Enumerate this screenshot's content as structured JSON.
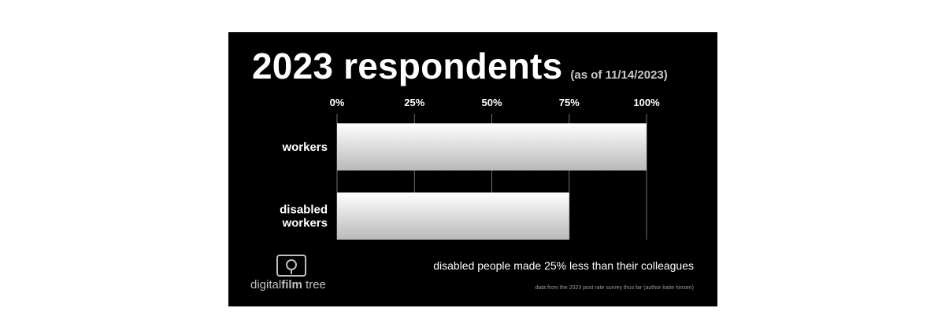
{
  "header": {
    "title": "2023 respondents",
    "subtitle": "(as of 11/14/2023)"
  },
  "chart_data": {
    "type": "bar",
    "orientation": "horizontal",
    "categories": [
      "workers",
      "disabled workers"
    ],
    "category_lines": [
      [
        "workers"
      ],
      [
        "disabled",
        "workers"
      ]
    ],
    "values": [
      100,
      75
    ],
    "xlim": [
      0,
      100
    ],
    "ticks": [
      "0%",
      "25%",
      "50%",
      "75%",
      "100%"
    ],
    "tick_values": [
      0,
      25,
      50,
      75,
      100
    ],
    "grid": true,
    "bar_color_top": "#ffffff",
    "bar_color_bottom": "#b9b9b9"
  },
  "annotation": "disabled people made 25% less than their colleagues",
  "source": "data from the 2023 post rate survey thus far (author katie hinsen)",
  "logo": {
    "icon": "tree-icon",
    "text_light": "digital",
    "text_bold": "film",
    "text_end": " tree"
  },
  "colors": {
    "background": "#000000",
    "text": "#ffffff",
    "muted": "#9a9a9a",
    "gridline": "#6f6f6f"
  }
}
